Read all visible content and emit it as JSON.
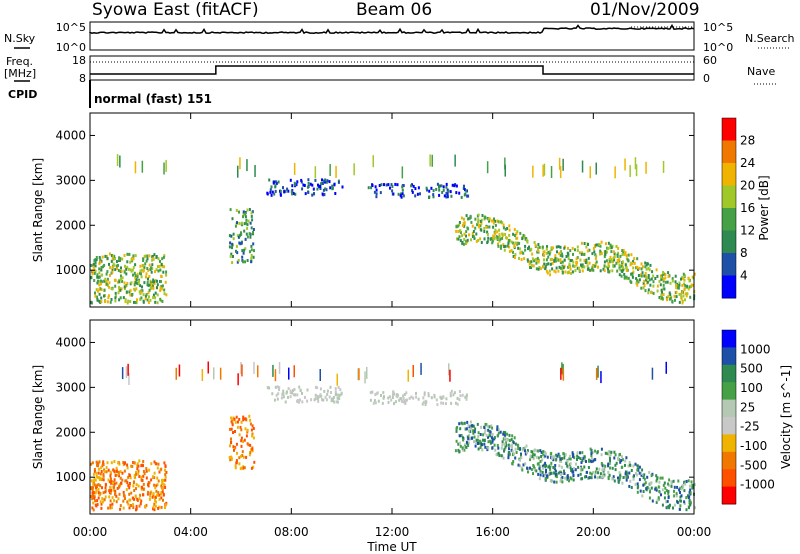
{
  "header": {
    "station": "Syowa East (fitACF)",
    "beam": "Beam 06",
    "date": "01/Nov/2009"
  },
  "noise_panel": {
    "left_label": "N.Sky",
    "left_ticks": [
      "10^5",
      "10^0"
    ],
    "right_ticks": [
      "10^5",
      "10^0"
    ],
    "right_label": "N.Search"
  },
  "freq_panel": {
    "left_label_1": "Freq.",
    "left_label_2": "[MHz]",
    "left_ticks": [
      "18",
      "8"
    ],
    "right_ticks": [
      "60",
      "0"
    ],
    "right_label": "Nave",
    "cpid_label": "CPID"
  },
  "cpid_text": "normal (fast) 151",
  "axes": {
    "ylabel": "Slant Range [km]",
    "yticks": [
      "4000",
      "3000",
      "2000",
      "1000"
    ],
    "xticks": [
      "00:00",
      "04:00",
      "08:00",
      "12:00",
      "16:00",
      "20:00",
      "00:00"
    ],
    "xlabel": "Time UT"
  },
  "colors": {
    "power_scale": [
      "#0000ff",
      "#1e50a8",
      "#2e8a50",
      "#46a046",
      "#a0c828",
      "#f0b400",
      "#f07800",
      "#ff0000"
    ],
    "velocity_scale": [
      "#0000ff",
      "#1e50a8",
      "#2e8a50",
      "#46a046",
      "#b4c8b4",
      "#c8c8c8",
      "#f0b400",
      "#f07800",
      "#ff5000",
      "#ff0000"
    ]
  },
  "chart_data": [
    {
      "type": "heatmap",
      "title": "Power",
      "colorbar_label": "Power [dB]",
      "colorbar_ticks": [
        "28",
        "24",
        "20",
        "16",
        "12",
        "8",
        "4"
      ],
      "x_range_hours": [
        0,
        24
      ],
      "y_range_km": [
        180,
        4500
      ],
      "scatter_regions": [
        {
          "t": [
            0.0,
            3.0
          ],
          "r": [
            300,
            1400
          ],
          "level": "strong"
        },
        {
          "t": [
            5.5,
            6.5
          ],
          "r": [
            1200,
            2400
          ],
          "level": "moderate"
        },
        {
          "t": [
            7.0,
            10.0
          ],
          "r": [
            2700,
            3050
          ],
          "level": "weak"
        },
        {
          "t": [
            11.0,
            15.0
          ],
          "r": [
            2650,
            2950
          ],
          "level": "weak"
        },
        {
          "t": [
            14.5,
            24.0
          ],
          "r": [
            400,
            2000
          ],
          "level": "strong"
        }
      ]
    },
    {
      "type": "heatmap",
      "title": "Velocity",
      "colorbar_label": "Velocity [m s^-1]",
      "colorbar_ticks": [
        "1000",
        "500",
        "100",
        "25",
        "-25",
        "-100",
        "-500",
        "-1000"
      ],
      "x_range_hours": [
        0,
        24
      ],
      "y_range_km": [
        180,
        4500
      ],
      "scatter_regions": [
        {
          "t": [
            0.0,
            3.0
          ],
          "r": [
            300,
            1400
          ],
          "velocity": "negative"
        },
        {
          "t": [
            5.5,
            6.5
          ],
          "r": [
            1200,
            2400
          ],
          "velocity": "negative"
        },
        {
          "t": [
            7.0,
            10.0
          ],
          "r": [
            2700,
            3050
          ],
          "velocity": "near-zero"
        },
        {
          "t": [
            11.0,
            15.0
          ],
          "r": [
            2650,
            2950
          ],
          "velocity": "near-zero"
        },
        {
          "t": [
            14.5,
            24.0
          ],
          "r": [
            400,
            2000
          ],
          "velocity": "positive"
        }
      ]
    }
  ]
}
